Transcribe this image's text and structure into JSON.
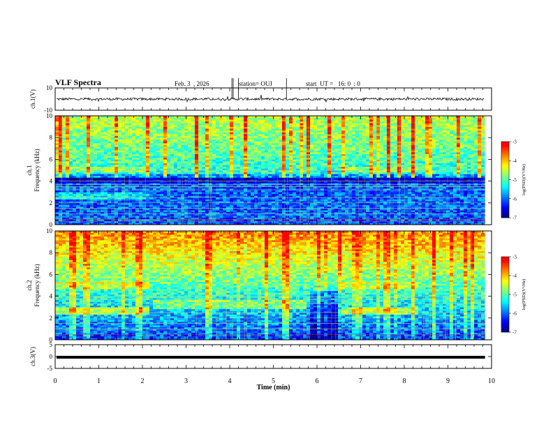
{
  "header": {
    "title": "VLF Spectra",
    "date": "Feb. 3  , 2026",
    "station": "station= OUJ",
    "start": "start  UT =   16: 0  : 0"
  },
  "colors": {
    "colormap": [
      "#00007f",
      "#0000ff",
      "#007fff",
      "#00ffff",
      "#7fff7f",
      "#ffff00",
      "#ff7f00",
      "#ff0000",
      "#ffffff"
    ],
    "trace": "#000000"
  },
  "chart_data": [
    {
      "type": "line",
      "ylabel": "ch.1(V)",
      "ylim": [
        -10,
        10
      ],
      "yticks": [
        "10",
        "-10"
      ],
      "xlim": [
        0,
        10
      ],
      "series": [
        {
          "baseline": 0
        }
      ]
    },
    {
      "type": "heatmap",
      "ylabel_top": "ch.1",
      "ylabel": "Frequency  (kHz)",
      "ylim": [
        0,
        10
      ],
      "yticks": [
        "0",
        "2",
        "4",
        "6",
        "8",
        "10"
      ],
      "xlim": [
        0,
        10
      ],
      "colorbar": {
        "label": "log(PSD)(V²/Hz)",
        "ticks": [
          "-3",
          "-4",
          "-5",
          "-6",
          "-7"
        ],
        "range": [
          -7,
          -3
        ]
      }
    },
    {
      "type": "heatmap",
      "ylabel_top": "ch.2",
      "ylabel": "Frequency  (kHz)",
      "ylim": [
        0,
        10
      ],
      "yticks": [
        "0",
        "2",
        "4",
        "6",
        "8",
        "10"
      ],
      "xlim": [
        0,
        10
      ],
      "colorbar": {
        "label": "log(PSD)(V²/Hz)",
        "ticks": [
          "-3",
          "-4",
          "-5",
          "-6",
          "-7"
        ],
        "range": [
          -7,
          -3
        ]
      }
    },
    {
      "type": "line",
      "ylabel": "ch.3(V)",
      "ylim": [
        -5,
        5
      ],
      "yticks": [
        "5",
        "0",
        "-5"
      ],
      "xlim": [
        0,
        10
      ],
      "series": [
        {
          "baseline": 0
        }
      ]
    }
  ],
  "xaxis": {
    "label": "Time  (min)",
    "ticks": [
      "0",
      "1",
      "2",
      "3",
      "4",
      "5",
      "6",
      "7",
      "8",
      "9",
      "10"
    ]
  }
}
